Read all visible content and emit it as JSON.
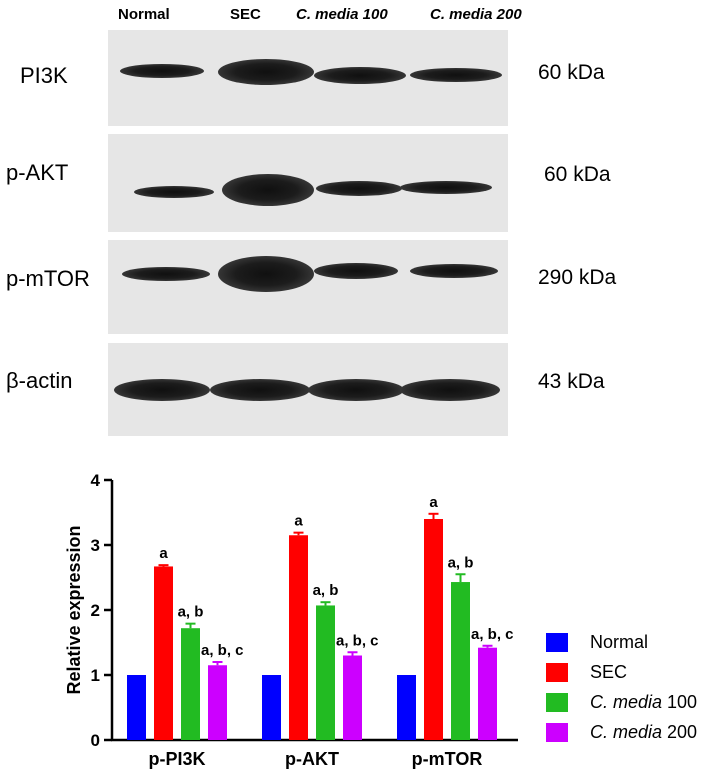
{
  "blot": {
    "lanes": [
      "Normal",
      "SEC",
      "C. media 100",
      "C. media 200"
    ],
    "rows": [
      {
        "label": "PI3K",
        "size": "60 kDa",
        "intensity": [
          0.75,
          1.0,
          0.7,
          0.62
        ]
      },
      {
        "label": "p-AKT",
        "size": "60 kDa",
        "intensity": [
          0.55,
          1.0,
          0.6,
          0.5
        ]
      },
      {
        "label": "p-mTOR",
        "size": "290 kDa",
        "intensity": [
          0.55,
          1.0,
          0.55,
          0.5
        ]
      },
      {
        "label": "β-actin",
        "size": "43 kDa",
        "intensity": [
          0.85,
          0.85,
          0.85,
          0.85
        ]
      }
    ]
  },
  "chart_data": {
    "type": "bar",
    "categories": [
      "p-PI3K",
      "p-AKT",
      "p-mTOR"
    ],
    "ylabel": "Relative expression",
    "ylim": [
      0,
      4
    ],
    "yticks": [
      "0",
      "1",
      "2",
      "3",
      "4"
    ],
    "legend_position": "right",
    "series": [
      {
        "name": "Normal",
        "legend_main": "Normal",
        "legend_suffix": "",
        "italic": false,
        "color": "#0000ff",
        "values": [
          1.0,
          1.0,
          1.0
        ],
        "errors": [
          0,
          0,
          0
        ],
        "labels": [
          "",
          "",
          ""
        ]
      },
      {
        "name": "SEC",
        "legend_main": "SEC",
        "legend_suffix": "",
        "italic": false,
        "color": "#ff0000",
        "values": [
          2.67,
          3.15,
          3.4
        ],
        "errors": [
          0.02,
          0.04,
          0.08
        ],
        "labels": [
          "a",
          "a",
          "a"
        ]
      },
      {
        "name": "C. media 100",
        "legend_main": "C. media",
        "legend_suffix": " 100",
        "italic": true,
        "color": "#22bb22",
        "values": [
          1.72,
          2.07,
          2.43
        ],
        "errors": [
          0.07,
          0.05,
          0.12
        ],
        "labels": [
          "a, b",
          "a, b",
          "a, b"
        ]
      },
      {
        "name": "C. media 200",
        "legend_main": "C. media",
        "legend_suffix": " 200",
        "italic": true,
        "color": "#cc00ff",
        "values": [
          1.15,
          1.3,
          1.42
        ],
        "errors": [
          0.05,
          0.05,
          0.03
        ],
        "labels": [
          "a, b, c",
          "a, b, c",
          "a, b, c"
        ]
      }
    ]
  }
}
